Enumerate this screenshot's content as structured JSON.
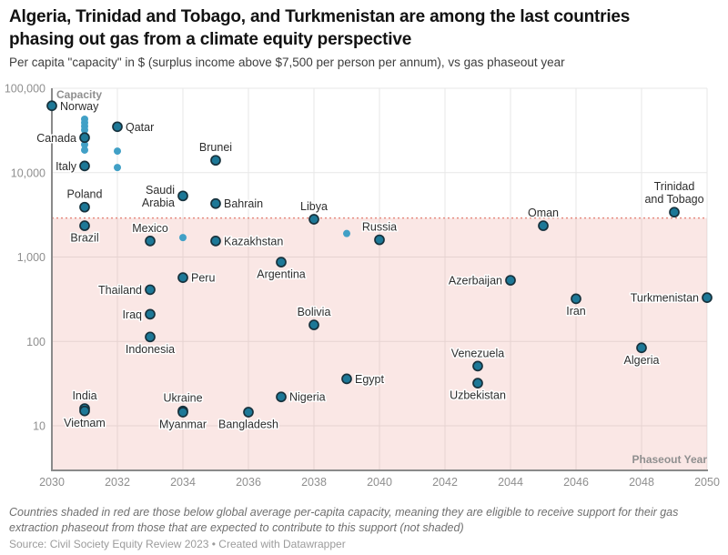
{
  "header": {
    "title_lines": [
      "Algeria, Trinidad and Tobago, and Turkmenistan are among the last countries",
      "phasing out gas from a climate equity perspective"
    ],
    "subtitle": "Per capita \"capacity\" in $ (surplus income above $7,500 per person per annum), vs gas phaseout year"
  },
  "footer": {
    "note": "Countries shaded in red are those below global average per-capita capacity, meaning they are eligible to receive support for their gas extraction phaseout from those that are expected to contribute to this support (not shaded)",
    "source": "Source: Civil Society Equity Review 2023 • Created with Datawrapper"
  },
  "colors": {
    "dot_labeled": "#1d7897",
    "dot_labeled_stroke": "#17323d",
    "dot_unlabeled": "#41a0c6",
    "shaded_region_fill": "#dd6a5e",
    "shaded_region_opacity": 0.16,
    "threshold_line": "#e58b80",
    "gridline": "#e7e7e7",
    "axis_line": "#8a8a8a"
  },
  "chart_data": {
    "type": "scatter",
    "title": "Algeria, Trinidad and Tobago, and Turkmenistan are among the last countries phasing out gas from a climate equity perspective",
    "x_axis": {
      "label": "Phaseout Year",
      "min": 2030,
      "max": 2050,
      "ticks": [
        2030,
        2032,
        2034,
        2036,
        2038,
        2040,
        2042,
        2044,
        2046,
        2048,
        2050
      ]
    },
    "y_axis": {
      "label": "Capacity",
      "scale": "log",
      "ticks": [
        100000,
        10000,
        1000,
        100,
        10
      ],
      "tick_labels": [
        "100,000",
        "10,000",
        "1,000",
        "100",
        "10"
      ],
      "min": 3,
      "max": 100000
    },
    "threshold_value": 2900,
    "grid": true,
    "points": [
      {
        "label": "Norway",
        "year": 2030,
        "value": 62000,
        "label_pos": "right"
      },
      {
        "label": "Canada",
        "year": 2031,
        "value": 26000,
        "label_pos": "left"
      },
      {
        "label": "Italy",
        "year": 2031,
        "value": 12000,
        "label_pos": "left"
      },
      {
        "label": "Qatar",
        "year": 2032,
        "value": 35000,
        "label_pos": "right"
      },
      {
        "label": "Brunei",
        "year": 2035,
        "value": 14000,
        "label_pos": "above"
      },
      {
        "label": "Poland",
        "year": 2031,
        "value": 3900,
        "label_pos": "above"
      },
      {
        "label": "Brazil",
        "year": 2031,
        "value": 2350,
        "label_pos": "below"
      },
      {
        "label": "Saudi\nArabia",
        "year": 2034,
        "value": 5300,
        "label_pos": "left"
      },
      {
        "label": "Bahrain",
        "year": 2035,
        "value": 4300,
        "label_pos": "right"
      },
      {
        "label": "Mexico",
        "year": 2033,
        "value": 1550,
        "label_pos": "above"
      },
      {
        "label": "Kazakhstan",
        "year": 2035,
        "value": 1550,
        "label_pos": "right"
      },
      {
        "label": "Libya",
        "year": 2038,
        "value": 2800,
        "label_pos": "above"
      },
      {
        "label": "Russia",
        "year": 2040,
        "value": 1600,
        "label_pos": "above"
      },
      {
        "label": "Argentina",
        "year": 2037,
        "value": 870,
        "label_pos": "below"
      },
      {
        "label": "Peru",
        "year": 2034,
        "value": 570,
        "label_pos": "right"
      },
      {
        "label": "Thailand",
        "year": 2033,
        "value": 410,
        "label_pos": "left"
      },
      {
        "label": "Iraq",
        "year": 2033,
        "value": 210,
        "label_pos": "left"
      },
      {
        "label": "Indonesia",
        "year": 2033,
        "value": 113,
        "label_pos": "below"
      },
      {
        "label": "Bolivia",
        "year": 2038,
        "value": 157,
        "label_pos": "above"
      },
      {
        "label": "India",
        "year": 2031,
        "value": 16,
        "label_pos": "above"
      },
      {
        "label": "Vietnam",
        "year": 2031,
        "value": 15,
        "label_pos": "below"
      },
      {
        "label": "Ukraine",
        "year": 2034,
        "value": 15,
        "label_pos": "above"
      },
      {
        "label": "Myanmar",
        "year": 2034,
        "value": 14.5,
        "label_pos": "below"
      },
      {
        "label": "Bangladesh",
        "year": 2036,
        "value": 14.5,
        "label_pos": "below"
      },
      {
        "label": "Nigeria",
        "year": 2037,
        "value": 22,
        "label_pos": "right"
      },
      {
        "label": "Egypt",
        "year": 2039,
        "value": 36,
        "label_pos": "right"
      },
      {
        "label": "Venezuela",
        "year": 2043,
        "value": 51,
        "label_pos": "above"
      },
      {
        "label": "Uzbekistan",
        "year": 2043,
        "value": 32,
        "label_pos": "below"
      },
      {
        "label": "Azerbaijan",
        "year": 2044,
        "value": 530,
        "label_pos": "left"
      },
      {
        "label": "Oman",
        "year": 2045,
        "value": 2350,
        "label_pos": "above"
      },
      {
        "label": "Iran",
        "year": 2046,
        "value": 320,
        "label_pos": "below"
      },
      {
        "label": "Algeria",
        "year": 2048,
        "value": 84,
        "label_pos": "below"
      },
      {
        "label": "Turkmenistan",
        "year": 2050,
        "value": 330,
        "label_pos": "left"
      },
      {
        "label": "Trinidad\nand Tobago",
        "year": 2049,
        "value": 3400,
        "label_pos": "above"
      }
    ],
    "unlabeled_points": [
      {
        "year": 2031,
        "value": 43000
      },
      {
        "year": 2031,
        "value": 39000
      },
      {
        "year": 2031,
        "value": 35500
      },
      {
        "year": 2031,
        "value": 32000
      },
      {
        "year": 2031,
        "value": 21500
      },
      {
        "year": 2031,
        "value": 18500
      },
      {
        "year": 2032,
        "value": 18000
      },
      {
        "year": 2032,
        "value": 11500
      },
      {
        "year": 2034,
        "value": 1700
      },
      {
        "year": 2039,
        "value": 1900
      }
    ]
  }
}
